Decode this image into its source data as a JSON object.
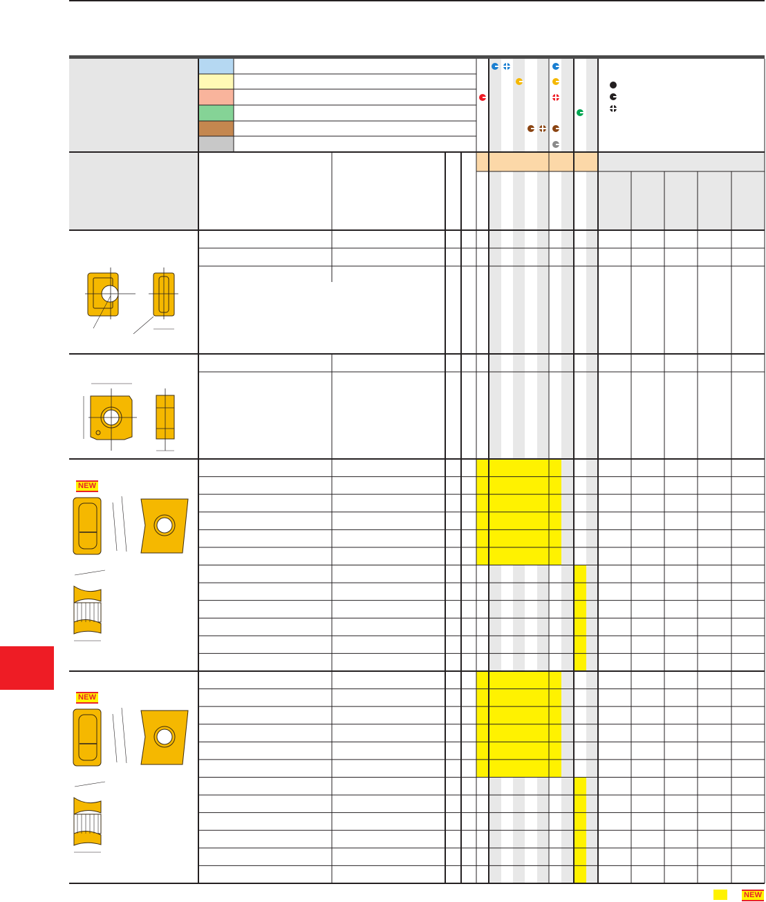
{
  "colors": {
    "highlight": "#fff200",
    "header_orange": "#fcd8a8",
    "header_gray": "#e8e8e8",
    "stripe_gray": "#e8e8e8",
    "insert_gold": "#f5b800",
    "side_tab": "#ee1c25",
    "top_bar": "#4a4a4a"
  },
  "legend": {
    "swatches": [
      {
        "name": "blue",
        "color": "#b5d8f2"
      },
      {
        "name": "yellow",
        "color": "#fff9b5"
      },
      {
        "name": "salmon",
        "color": "#f9b49c"
      },
      {
        "name": "green",
        "color": "#85d396"
      },
      {
        "name": "brown",
        "color": "#c4874f"
      },
      {
        "name": "gray",
        "color": "#c8c8c8"
      }
    ],
    "markers": [
      {
        "row": 0,
        "icon": "c-dot-icon",
        "color": "#1a7fd1",
        "col": 1
      },
      {
        "row": 0,
        "icon": "cross-dot-icon",
        "color": "#1a7fd1",
        "col": 2
      },
      {
        "row": 0,
        "icon": "c-dot-icon",
        "color": "#1a7fd1",
        "col": 6
      },
      {
        "row": 1,
        "icon": "c-dot-icon",
        "color": "#f5b800",
        "col": 3
      },
      {
        "row": 1,
        "icon": "c-dot-icon",
        "color": "#f5b800",
        "col": 6
      },
      {
        "row": 2,
        "icon": "c-dot-icon",
        "color": "#ee1c25",
        "col": 0
      },
      {
        "row": 2,
        "icon": "cross-dot-icon",
        "color": "#ee1c25",
        "col": 6
      },
      {
        "row": 3,
        "icon": "c-dot-icon",
        "color": "#00a651",
        "col": 8
      },
      {
        "row": 4,
        "icon": "c-dot-icon",
        "color": "#8b4513",
        "col": 4
      },
      {
        "row": 4,
        "icon": "cross-dot-icon",
        "color": "#8b4513",
        "col": 5
      },
      {
        "row": 4,
        "icon": "c-dot-icon",
        "color": "#8b4513",
        "col": 6
      },
      {
        "row": 5,
        "icon": "c-dot-icon",
        "color": "#8a8a8a",
        "col": 6
      }
    ],
    "key": [
      {
        "icon": "full-dot-icon",
        "color": "#231f20"
      },
      {
        "icon": "c-dot-icon",
        "color": "#231f20"
      },
      {
        "icon": "cross-dot-icon",
        "color": "#231f20"
      }
    ]
  },
  "badges": {
    "new_label": "NEW"
  },
  "footer": {
    "new_label": "NEW"
  }
}
